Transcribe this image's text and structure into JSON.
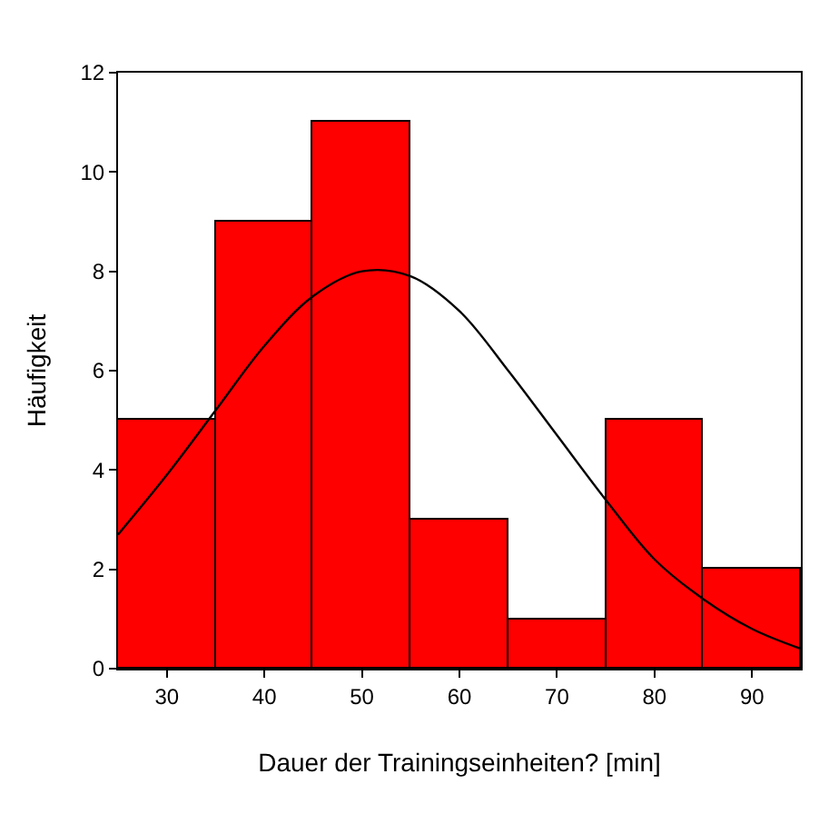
{
  "chart_data": {
    "type": "histogram",
    "xlabel": "Dauer der Trainingseinheiten? [min]",
    "ylabel": "Häufigkeit",
    "bins": [
      25,
      35,
      45,
      55,
      65,
      75,
      85,
      95
    ],
    "values": [
      5,
      9,
      11,
      3,
      1,
      5,
      2
    ],
    "color": "#ff0000",
    "series": [
      {
        "type": "line",
        "color": "#000000",
        "x": [
          25,
          30,
          35,
          40,
          45,
          50,
          55,
          60,
          65,
          70,
          75,
          80,
          85,
          90,
          95
        ],
        "values": [
          2.7,
          3.9,
          5.2,
          6.5,
          7.5,
          8.0,
          7.9,
          7.2,
          6.0,
          4.7,
          3.4,
          2.2,
          1.4,
          0.8,
          0.4
        ]
      }
    ],
    "xlim": [
      25,
      95
    ],
    "xticks": [
      30,
      40,
      50,
      60,
      70,
      80,
      90
    ],
    "ylim": [
      0,
      12
    ],
    "yticks": [
      0,
      2,
      4,
      6,
      8,
      10,
      12
    ]
  }
}
